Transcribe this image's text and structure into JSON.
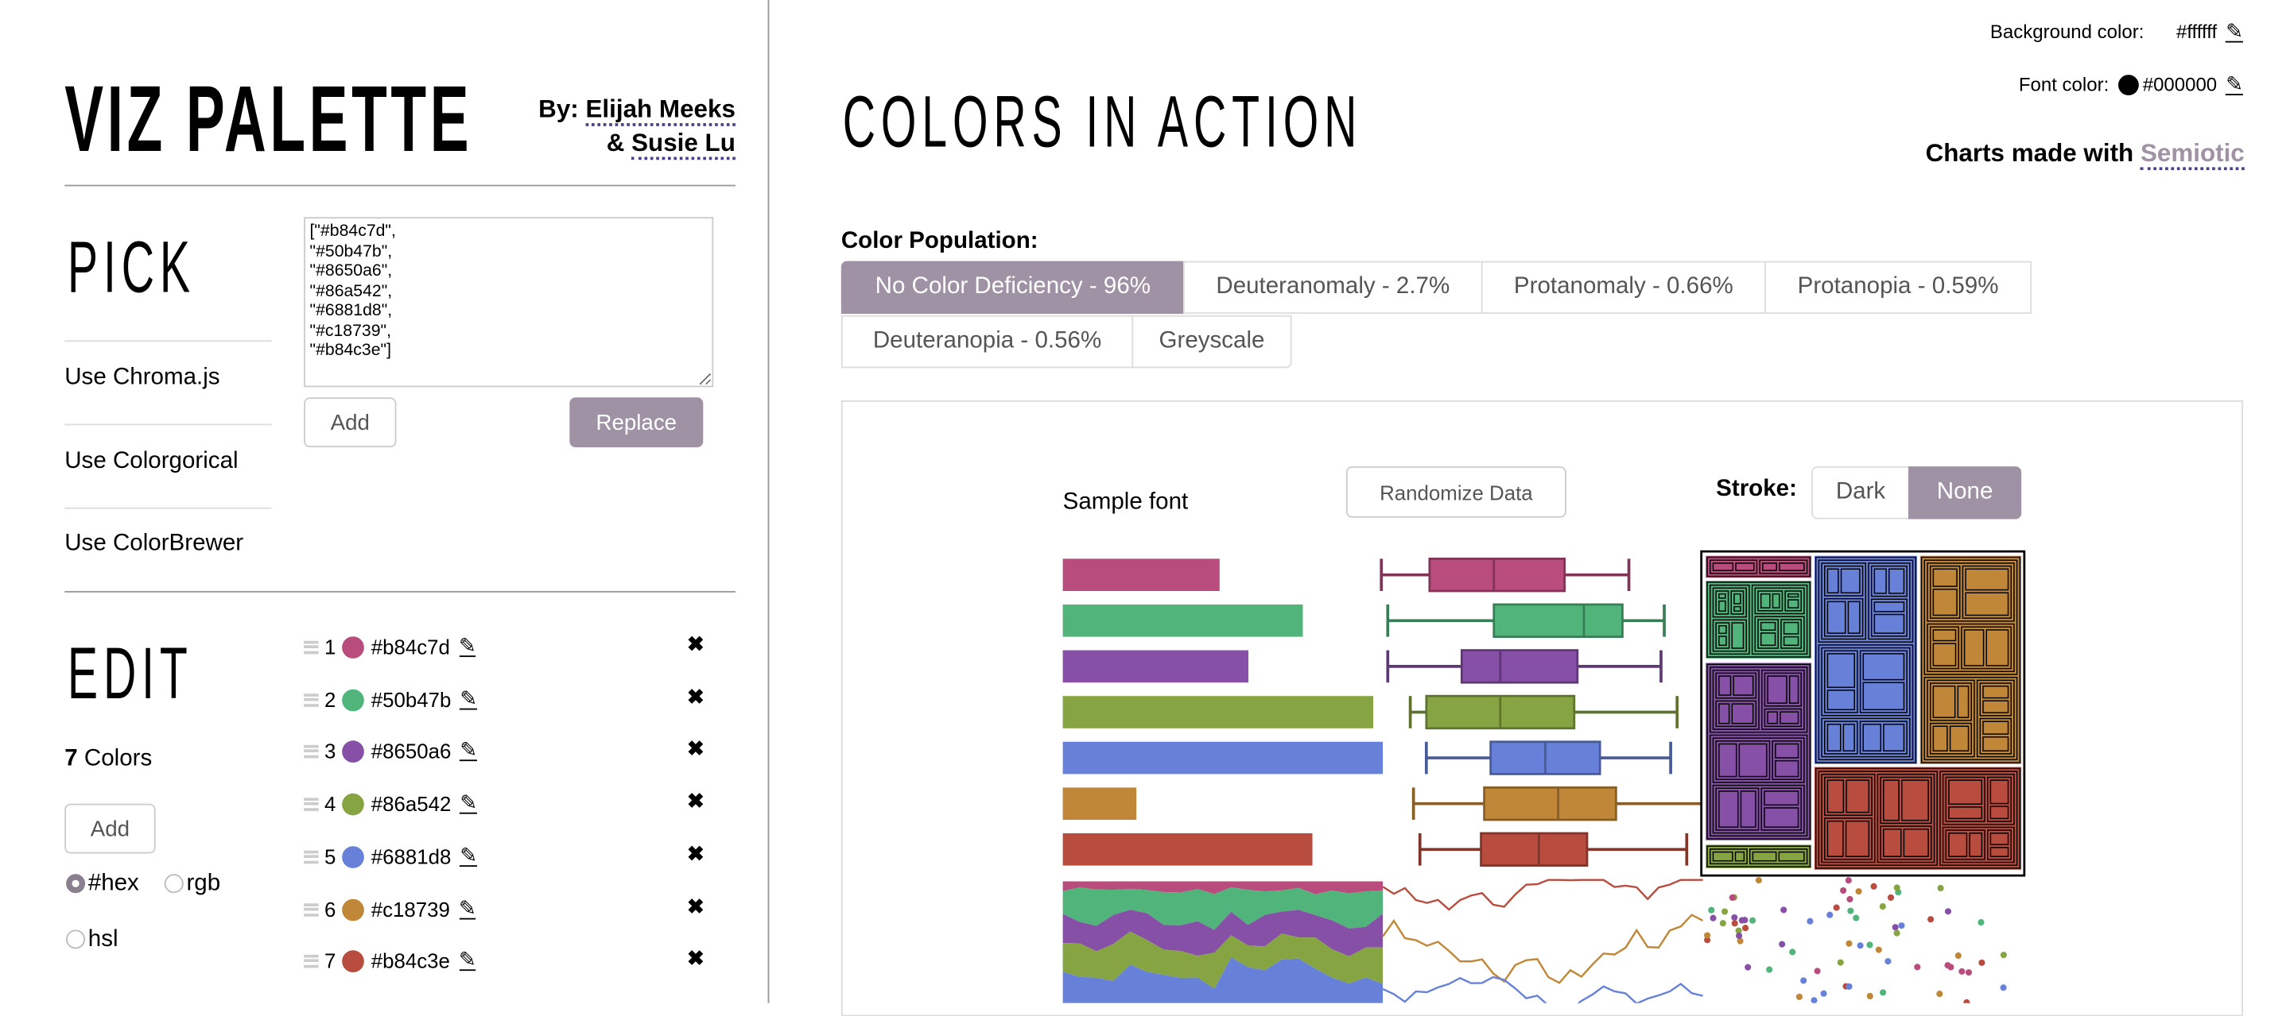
{
  "header": {
    "title": "VIZ PALETTE",
    "by_label": "By:",
    "author1": "Elijah Meeks",
    "amp": "&",
    "author2": "Susie Lu"
  },
  "pick": {
    "heading": "PICK",
    "textarea_value": "[\"#b84c7d\",\n\"#50b47b\",\n\"#8650a6\",\n\"#86a542\",\n\"#6881d8\",\n\"#c18739\",\n\"#b84c3e\"]",
    "options": [
      "Use Chroma.js",
      "Use Colorgorical",
      "Use ColorBrewer"
    ],
    "add_label": "Add",
    "replace_label": "Replace"
  },
  "edit": {
    "heading": "EDIT",
    "count": "7",
    "count_label": "Colors",
    "add_label": "Add",
    "formats": [
      {
        "label": "#hex",
        "selected": true
      },
      {
        "label": "rgb",
        "selected": false
      },
      {
        "label": "hsl",
        "selected": false
      }
    ],
    "colors": [
      {
        "index": "1",
        "hex": "#b84c7d"
      },
      {
        "index": "2",
        "hex": "#50b47b"
      },
      {
        "index": "3",
        "hex": "#8650a6"
      },
      {
        "index": "4",
        "hex": "#86a542"
      },
      {
        "index": "5",
        "hex": "#6881d8"
      },
      {
        "index": "6",
        "hex": "#c18739"
      },
      {
        "index": "7",
        "hex": "#b84c3e"
      }
    ]
  },
  "main": {
    "title": "COLORS IN ACTION",
    "bg_color_label": "Background color:",
    "bg_color_value": "#ffffff",
    "font_color_label": "Font color:",
    "font_color_value": "#000000",
    "charts_made_with": "Charts made with",
    "semiotic": "Semiotic",
    "population_label": "Color Population:",
    "tabs": [
      {
        "label": "No Color Deficiency - 96%",
        "active": true
      },
      {
        "label": "Deuteranomaly - 2.7%"
      },
      {
        "label": "Protanomaly - 0.66%"
      },
      {
        "label": "Protanopia - 0.59%"
      },
      {
        "label": "Deuteranopia - 0.56%"
      },
      {
        "label": "Greyscale"
      }
    ],
    "sample_font": "Sample font",
    "randomize_label": "Randomize Data",
    "stroke_label": "Stroke:",
    "stroke_options": [
      {
        "label": "Dark"
      },
      {
        "label": "None",
        "active": true
      }
    ]
  },
  "sample_charts": {
    "bar_values": [
      49,
      75,
      58,
      97,
      100,
      23,
      78
    ],
    "boxplots": [
      [
        0,
        15,
        35,
        57,
        77
      ],
      [
        2,
        35,
        63,
        75,
        88
      ],
      [
        2,
        25,
        37,
        61,
        87
      ],
      [
        9,
        14,
        37,
        60,
        92
      ],
      [
        14,
        34,
        51,
        68,
        90
      ],
      [
        10,
        32,
        55,
        73,
        100
      ],
      [
        12,
        31,
        49,
        64,
        95
      ]
    ],
    "accent": "#a092a5"
  }
}
